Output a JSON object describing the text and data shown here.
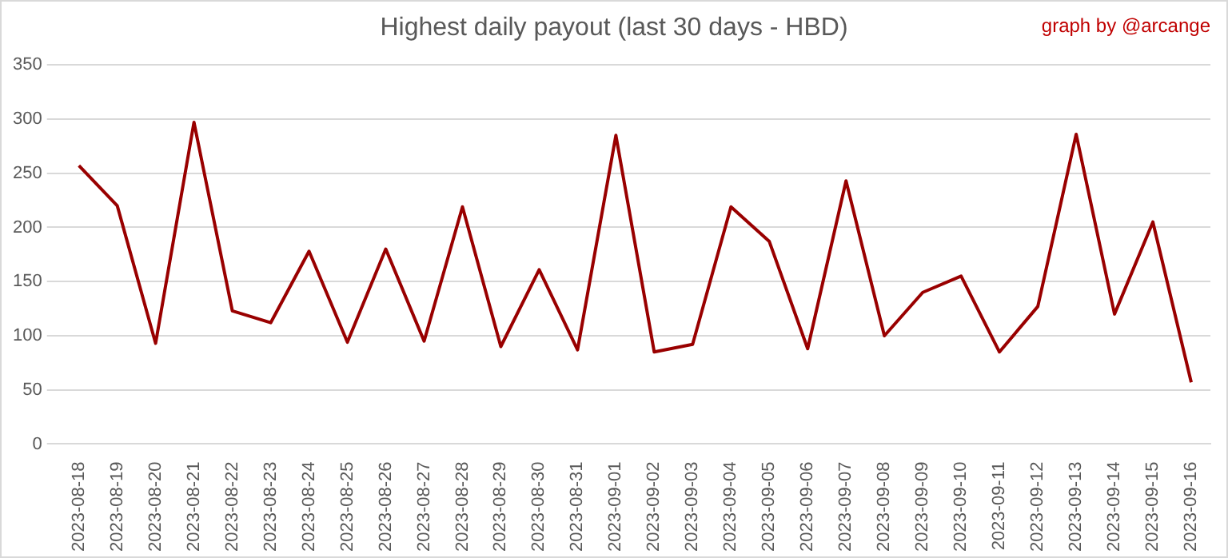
{
  "chart_data": {
    "type": "line",
    "title": "Highest daily payout (last 30 days - HBD)",
    "annotations": [
      "graph by @arcange"
    ],
    "categories": [
      "2023-08-18",
      "2023-08-19",
      "2023-08-20",
      "2023-08-21",
      "2023-08-22",
      "2023-08-23",
      "2023-08-24",
      "2023-08-25",
      "2023-08-26",
      "2023-08-27",
      "2023-08-28",
      "2023-08-29",
      "2023-08-30",
      "2023-08-31",
      "2023-09-01",
      "2023-09-02",
      "2023-09-03",
      "2023-09-04",
      "2023-09-05",
      "2023-09-06",
      "2023-09-07",
      "2023-09-08",
      "2023-09-09",
      "2023-09-10",
      "2023-09-11",
      "2023-09-12",
      "2023-09-13",
      "2023-09-14",
      "2023-09-15",
      "2023-09-16"
    ],
    "series": [
      {
        "color": "#990000",
        "values": [
          257,
          220,
          93,
          297,
          123,
          112,
          178,
          94,
          180,
          95,
          219,
          90,
          161,
          87,
          285,
          85,
          92,
          219,
          187,
          88,
          243,
          100,
          140,
          155,
          85,
          127,
          286,
          120,
          205,
          57
        ]
      }
    ],
    "ylim": [
      0,
      350
    ],
    "yticks": [
      0,
      50,
      100,
      150,
      200,
      250,
      300,
      350
    ],
    "grid": "y",
    "legend": false,
    "marker": "none",
    "line_style": "solid"
  }
}
